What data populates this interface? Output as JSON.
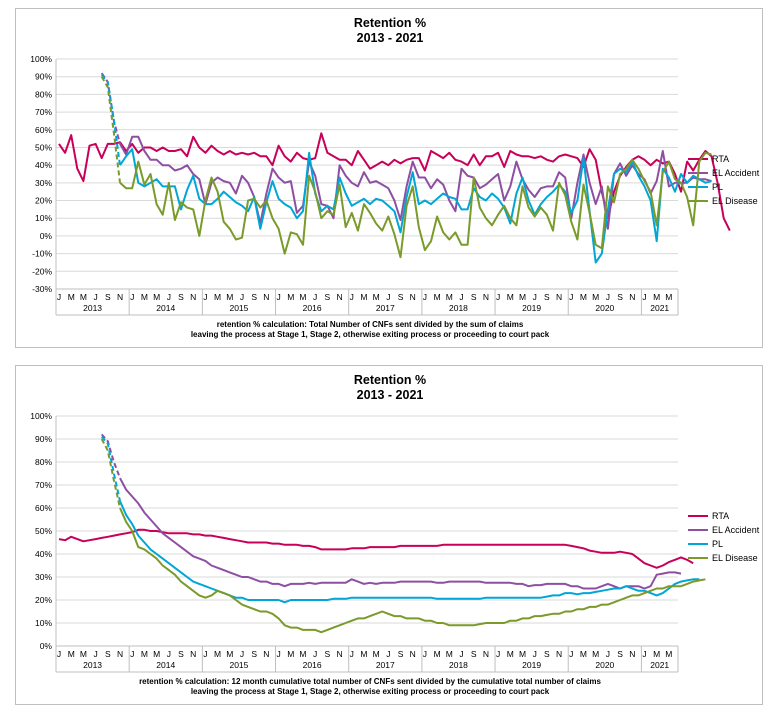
{
  "chart_data": [
    {
      "type": "line",
      "title": "Retention %",
      "subtitle": "2013 - 2021",
      "ylim": [
        -30,
        100
      ],
      "ytick_step": 10,
      "month_tick_labels": [
        "J",
        "M",
        "M",
        "J",
        "S",
        "N"
      ],
      "years": [
        "2013",
        "2014",
        "2015",
        "2016",
        "2017",
        "2018",
        "2019",
        "2020",
        "2021"
      ],
      "x_start": "2013-01",
      "x_end": "2021-06",
      "note_lines": [
        "retention % calculation:  Total Number of CNFs sent divided by the sum of claims",
        "leaving the process at Stage 1, Stage  2,  otherwise exiting process or proceeding to court pack"
      ],
      "legend_position": "right",
      "grid": "horizontal",
      "series": [
        {
          "name": "RTA",
          "color": "#c8005a",
          "start": "2013-01",
          "values": [
            52,
            47,
            57,
            38,
            31,
            51,
            52,
            44,
            52,
            52,
            53,
            48,
            52,
            47,
            50,
            50,
            48,
            50,
            48,
            48,
            49,
            45,
            56,
            50,
            47,
            51,
            48,
            46,
            48,
            46,
            47,
            46,
            47,
            45,
            45,
            40,
            51,
            45,
            42,
            47,
            44,
            43,
            44,
            58,
            47,
            45,
            43,
            43,
            40,
            48,
            43,
            38,
            40,
            42,
            40,
            43,
            41,
            43,
            44,
            44,
            37,
            48,
            46,
            44,
            47,
            43,
            42,
            40,
            46,
            40,
            45,
            45,
            47,
            39,
            48,
            46,
            45,
            45,
            44,
            45,
            43,
            42,
            45,
            46,
            45,
            44,
            39,
            49,
            43,
            25,
            10,
            25,
            34,
            39,
            43,
            45,
            43,
            40,
            43,
            41,
            42,
            35,
            25,
            42,
            37,
            43,
            48,
            45,
            30,
            10,
            3
          ]
        },
        {
          "name": "EL Accident",
          "color": "#8e4fa3",
          "start": "2013-08",
          "dashed_until": "2013-11",
          "values": [
            92,
            87,
            65,
            52,
            46,
            56,
            56,
            48,
            43,
            43,
            40,
            40,
            37,
            38,
            40,
            35,
            32,
            18,
            30,
            33,
            31,
            30,
            24,
            34,
            30,
            22,
            7,
            24,
            38,
            33,
            30,
            31,
            13,
            17,
            42,
            34,
            18,
            17,
            10,
            40,
            34,
            30,
            28,
            36,
            30,
            31,
            29,
            27,
            20,
            9,
            28,
            42,
            33,
            33,
            27,
            32,
            29,
            20,
            14,
            38,
            34,
            33,
            27,
            29,
            32,
            35,
            20,
            28,
            42,
            32,
            26,
            22,
            27,
            28,
            28,
            36,
            33,
            10,
            30,
            46,
            30,
            18,
            28,
            4,
            35,
            41,
            34,
            40,
            35,
            32,
            24,
            31,
            48,
            28,
            30,
            30,
            30,
            33,
            32,
            32,
            31
          ]
        },
        {
          "name": "PL",
          "color": "#00a6d6",
          "start": "2013-08",
          "dashed_until": "2013-11",
          "values": [
            91,
            87,
            65,
            40,
            45,
            49,
            30,
            28,
            30,
            32,
            28,
            28,
            28,
            15,
            26,
            34,
            21,
            18,
            18,
            21,
            25,
            22,
            19,
            17,
            14,
            22,
            4,
            19,
            31,
            21,
            18,
            16,
            10,
            14,
            47,
            24,
            14,
            17,
            15,
            33,
            24,
            17,
            19,
            21,
            18,
            21,
            20,
            17,
            14,
            2,
            22,
            36,
            18,
            20,
            18,
            21,
            24,
            22,
            21,
            15,
            15,
            27,
            22,
            20,
            24,
            21,
            16,
            7,
            24,
            33,
            20,
            12,
            18,
            22,
            25,
            29,
            25,
            13,
            20,
            44,
            14,
            -15,
            -10,
            15,
            35,
            38,
            36,
            42,
            34,
            28,
            20,
            -3,
            38,
            33,
            25,
            35,
            30,
            34,
            32,
            30,
            31
          ]
        },
        {
          "name": "EL Disease",
          "color": "#7a9a2a",
          "start": "2013-08",
          "dashed_until": "2013-11",
          "values": [
            90,
            84,
            58,
            30,
            27,
            27,
            42,
            29,
            35,
            18,
            12,
            30,
            9,
            19,
            16,
            15,
            0,
            20,
            33,
            25,
            8,
            4,
            -2,
            -1,
            20,
            21,
            16,
            20,
            10,
            4,
            -10,
            2,
            1,
            -5,
            34,
            25,
            10,
            14,
            12,
            29,
            5,
            13,
            3,
            18,
            13,
            7,
            3,
            11,
            1,
            -12,
            17,
            28,
            5,
            -8,
            -3,
            11,
            2,
            -2,
            2,
            -5,
            -5,
            33,
            16,
            10,
            6,
            12,
            17,
            10,
            6,
            28,
            16,
            11,
            16,
            12,
            3,
            30,
            23,
            8,
            -2,
            29,
            13,
            -5,
            -7,
            28,
            19,
            35,
            38,
            43,
            38,
            31,
            25,
            6,
            36,
            42,
            32,
            30,
            22,
            6,
            42,
            47,
            46
          ]
        }
      ]
    },
    {
      "type": "line",
      "title": "Retention %",
      "subtitle": "2013 - 2021",
      "ylim": [
        0,
        100
      ],
      "ytick_step": 10,
      "month_tick_labels": [
        "J",
        "M",
        "M",
        "J",
        "S",
        "N"
      ],
      "years": [
        "2013",
        "2014",
        "2015",
        "2016",
        "2017",
        "2018",
        "2019",
        "2020",
        "2021"
      ],
      "x_start": "2013-01",
      "x_end": "2021-06",
      "note_lines": [
        "retention % calculation:  12 month cumulative total number of CNFs sent divided by the cumulative total number of claims",
        "leaving the process at Stage 1, Stage  2,  otherwise exiting process or proceeding to court  pack"
      ],
      "legend_position": "right",
      "grid": "horizontal",
      "series": [
        {
          "name": "RTA",
          "color": "#c8005a",
          "start": "2013-01",
          "values": [
            46.5,
            46,
            47.5,
            46.5,
            45.5,
            46,
            46.5,
            47,
            47.5,
            48,
            48.5,
            49,
            49.5,
            50.5,
            50.5,
            50,
            50,
            49.5,
            49,
            49,
            49,
            49,
            48.5,
            48.5,
            48,
            48,
            47.5,
            47,
            46.5,
            46,
            45.5,
            45,
            45,
            45,
            45,
            44.5,
            44.5,
            44,
            44,
            44,
            43.5,
            43.5,
            43,
            42,
            42,
            42,
            42,
            42,
            42.5,
            42.5,
            42.5,
            43,
            43,
            43,
            43,
            43,
            43.5,
            43.5,
            43.5,
            43.5,
            43.5,
            43.5,
            43.5,
            44,
            44,
            44,
            44,
            44,
            44,
            44,
            44,
            44,
            44,
            44,
            44,
            44,
            44,
            44,
            44,
            44,
            44,
            44,
            44,
            44,
            43.5,
            43,
            42.5,
            41.5,
            41,
            40.5,
            40.5,
            40.5,
            41,
            40.5,
            40,
            38,
            36,
            35,
            34,
            35,
            36.5,
            37.5,
            38.5,
            37.5,
            36
          ]
        },
        {
          "name": "EL Accident",
          "color": "#8e4fa3",
          "start": "2013-08",
          "dashed_until": "2013-11",
          "values": [
            92,
            89,
            80,
            73,
            68,
            65,
            62,
            58,
            55,
            52,
            49,
            47,
            45,
            43,
            41,
            39,
            38,
            37,
            35,
            34,
            33,
            32,
            31,
            30,
            30,
            29,
            28,
            28,
            27,
            27,
            26,
            27,
            27,
            27,
            27.5,
            27,
            27.5,
            27.5,
            27.5,
            27.5,
            27.5,
            29,
            28,
            27,
            27.5,
            27,
            27.5,
            27.5,
            27.5,
            28,
            28,
            28,
            28,
            28,
            28,
            27.5,
            27.5,
            28,
            28,
            28,
            28,
            28,
            28,
            27.5,
            27.5,
            27.5,
            27.5,
            27.5,
            27,
            27,
            26,
            26.5,
            26.5,
            27,
            27,
            27,
            27,
            26,
            26,
            25,
            25,
            25,
            26,
            27,
            26,
            25,
            26,
            26,
            26,
            25,
            26,
            31,
            31.5,
            32,
            32,
            31.5
          ]
        },
        {
          "name": "PL",
          "color": "#00a6d6",
          "start": "2013-08",
          "dashed_until": "2013-11",
          "values": [
            91,
            88,
            75,
            63,
            57,
            53,
            48,
            45,
            42,
            40,
            38,
            36,
            34,
            32,
            30,
            28,
            27,
            26,
            25,
            24,
            23,
            22,
            21,
            21,
            20,
            20,
            20,
            20,
            20,
            20,
            19,
            20,
            20,
            20,
            20,
            20,
            20,
            20,
            20.5,
            20.5,
            20.5,
            21,
            21,
            21,
            21,
            21,
            21,
            21,
            21,
            21,
            21,
            21,
            21,
            21,
            21,
            20.5,
            20.5,
            20.5,
            20.5,
            20.5,
            20.5,
            20.5,
            20.5,
            21,
            21,
            21,
            21,
            21,
            21,
            21,
            21,
            21,
            21,
            21.5,
            22,
            22,
            23,
            23,
            22.5,
            23,
            23,
            23.5,
            24,
            24.5,
            25,
            25,
            26,
            25,
            24,
            24,
            23,
            22,
            23,
            25,
            27,
            28,
            28.5,
            29,
            29
          ]
        },
        {
          "name": "EL Disease",
          "color": "#7a9a2a",
          "start": "2013-08",
          "dashed_until": "2013-11",
          "values": [
            90,
            85,
            72,
            60,
            54,
            50,
            43,
            42,
            40,
            38,
            35,
            33,
            31,
            28,
            26,
            24,
            22,
            21,
            22,
            24,
            23,
            22,
            20,
            18,
            17,
            16,
            15,
            15,
            14,
            12,
            9,
            8,
            8,
            7,
            7,
            7,
            6,
            7,
            8,
            9,
            10,
            11,
            12,
            12,
            13,
            14,
            15,
            14,
            13,
            13,
            12,
            12,
            12,
            11,
            11,
            10,
            10,
            9,
            9,
            9,
            9,
            9,
            9.5,
            10,
            10,
            10,
            10,
            11,
            11,
            12,
            12,
            13,
            13,
            13.5,
            14,
            14,
            15,
            15,
            16,
            16,
            17,
            17,
            18,
            18,
            19,
            20,
            21,
            22,
            22,
            23,
            24,
            25,
            25,
            26,
            26,
            26,
            27,
            28,
            28.5,
            29
          ]
        }
      ]
    }
  ]
}
